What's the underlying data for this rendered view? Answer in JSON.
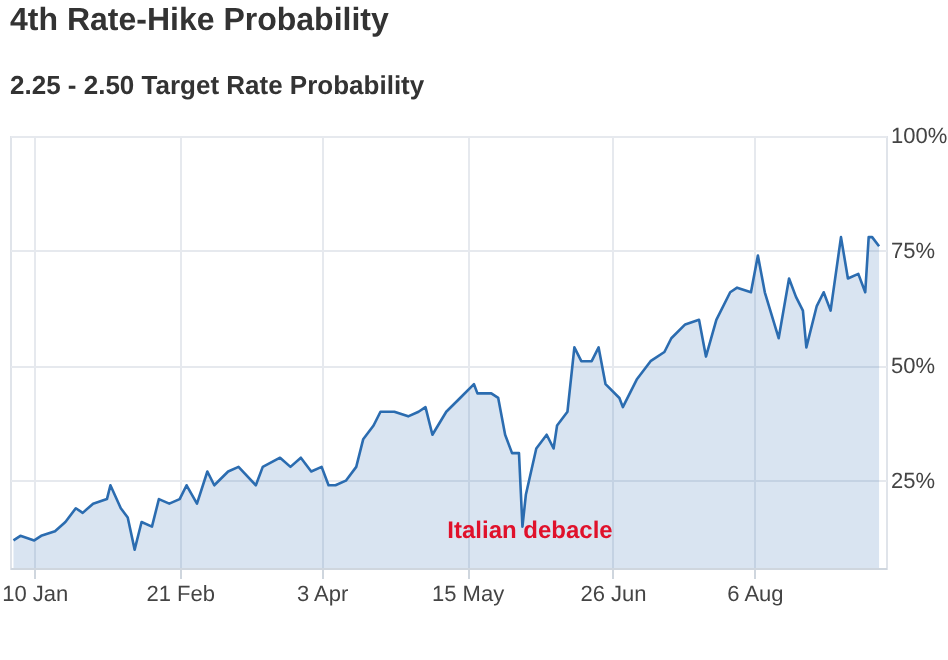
{
  "chart_data": {
    "type": "area",
    "title": "4th Rate-Hike Probability",
    "subtitle": "2.25 - 2.50 Target Rate Probability",
    "x": [
      "--01-04",
      "--01-06",
      "--01-10",
      "--01-12",
      "--01-16",
      "--01-19",
      "--01-22",
      "--01-24",
      "--01-27",
      "--01-31",
      "--02-01",
      "--02-04",
      "--02-06",
      "--02-08",
      "--02-10",
      "--02-13",
      "--02-15",
      "--02-18",
      "--02-21",
      "--02-23",
      "--02-26",
      "--03-01",
      "--03-03",
      "--03-07",
      "--03-10",
      "--03-15",
      "--03-17",
      "--03-22",
      "--03-25",
      "--03-28",
      "--03-31",
      "--04-03",
      "--04-05",
      "--04-07",
      "--04-10",
      "--04-13",
      "--04-15",
      "--04-18",
      "--04-20",
      "--04-24",
      "--04-28",
      "--05-01",
      "--05-03",
      "--05-05",
      "--05-09",
      "--05-13",
      "--05-17",
      "--05-18",
      "--05-22",
      "--05-24",
      "--05-26",
      "--05-28",
      "--05-30",
      "--05-31",
      "--06-01",
      "--06-04",
      "--06-07",
      "--06-09",
      "--06-10",
      "--06-13",
      "--06-15",
      "--06-17",
      "--06-20",
      "--06-22",
      "--06-24",
      "--06-28",
      "--06-29",
      "--07-03",
      "--07-07",
      "--07-11",
      "--07-13",
      "--07-17",
      "--07-21",
      "--07-23",
      "--07-26",
      "--07-30",
      "--08-01",
      "--08-05",
      "--08-07",
      "--08-09",
      "--08-13",
      "--08-16",
      "--08-18",
      "--08-20",
      "--08-21",
      "--08-24",
      "--08-26",
      "--08-28",
      "--08-31",
      "--09-02",
      "--09-05",
      "--09-07",
      "--09-08",
      "--09-09",
      "--09-11"
    ],
    "series": [
      {
        "color": "#2b6cb0",
        "values": [
          12,
          13,
          12,
          13,
          14,
          16,
          19,
          18,
          20,
          21,
          24,
          19,
          17,
          10,
          16,
          15,
          21,
          20,
          21,
          24,
          20,
          27,
          24,
          27,
          28,
          24,
          28,
          30,
          28,
          30,
          27,
          28,
          24,
          24,
          25,
          28,
          34,
          37,
          40,
          40,
          39,
          40,
          41,
          35,
          40,
          43,
          46,
          44,
          44,
          43,
          35,
          31,
          31,
          15,
          22,
          32,
          35,
          32,
          37,
          40,
          54,
          51,
          51,
          54,
          46,
          43,
          41,
          47,
          51,
          53,
          56,
          59,
          60,
          52,
          60,
          66,
          67,
          66,
          74,
          66,
          56,
          69,
          65,
          62,
          54,
          63,
          66,
          62,
          78,
          69,
          70,
          66,
          78,
          78,
          76
        ]
      }
    ],
    "xlim": [
      "--01-03",
      "--09-13"
    ],
    "ylim": [
      6,
      100
    ],
    "xticks": [
      {
        "value": "--01-10",
        "label": "10 Jan"
      },
      {
        "value": "--02-21",
        "label": "21 Feb"
      },
      {
        "value": "--04-03",
        "label": "3 Apr"
      },
      {
        "value": "--05-15",
        "label": "15 May"
      },
      {
        "value": "--06-26",
        "label": "26 Jun"
      },
      {
        "value": "--08-06",
        "label": "6 Aug"
      }
    ],
    "yticks": [
      {
        "value": 25,
        "label": "25%"
      },
      {
        "value": 50,
        "label": "50%"
      },
      {
        "value": 75,
        "label": "75%"
      },
      {
        "value": 100,
        "label": "100%"
      }
    ],
    "grid": true,
    "annotations": [
      "Italian debacle"
    ]
  }
}
